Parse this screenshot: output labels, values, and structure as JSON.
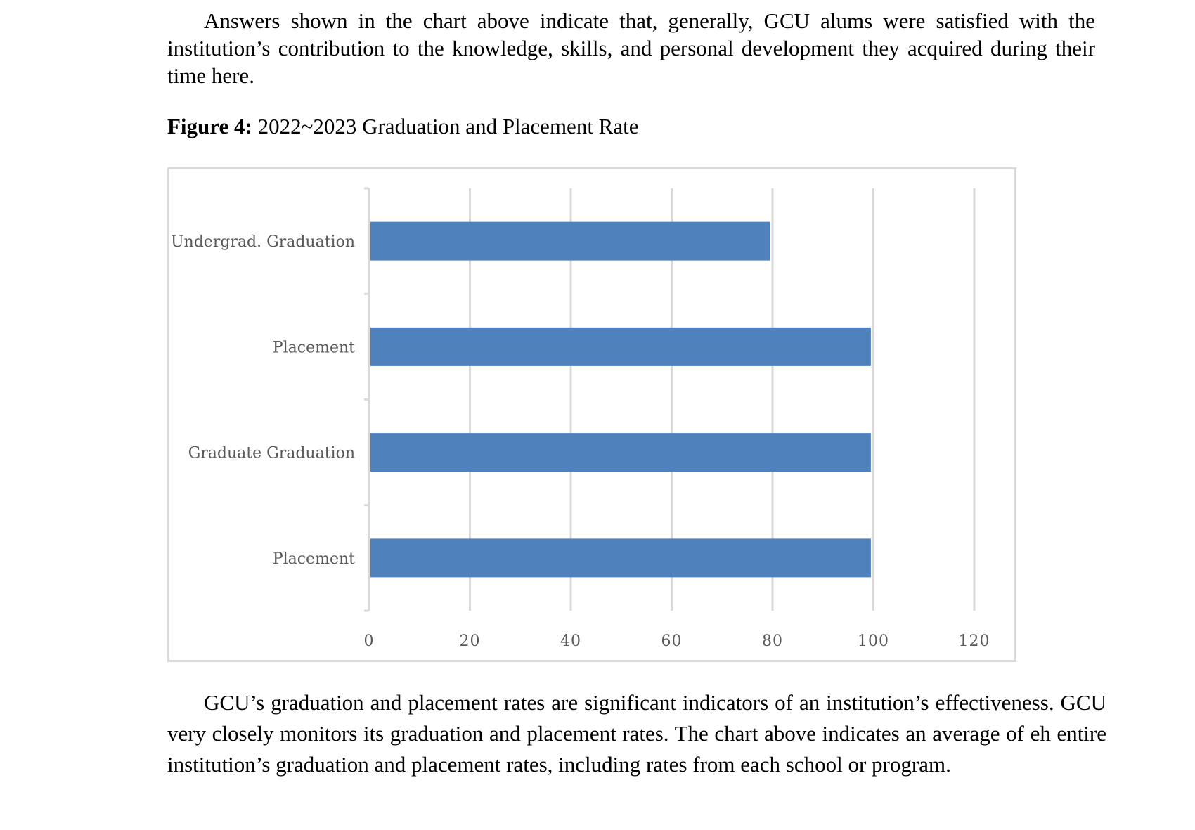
{
  "document": {
    "paragraph_top": "Answers shown in the chart above indicate that, generally, GCU alums were satisfied with the institution’s contribution to the knowledge, skills, and personal development they acquired during their time here.",
    "figure_label": "Figure 4:",
    "figure_title": "2022~2023 Graduation and Placement Rate",
    "paragraph_bottom": "GCU’s graduation and placement rates are significant indicators of an institution’s effectiveness. GCU very closely monitors its graduation and placement rates. The chart above indicates an average of eh entire institution’s graduation and placement rates, including rates from each school or program."
  },
  "chart_data": {
    "type": "bar",
    "orientation": "horizontal",
    "title": "",
    "xlabel": "",
    "ylabel": "",
    "categories": [
      "Undergrad. Graduation",
      "Placement",
      "Graduate Graduation",
      "Placement"
    ],
    "values": [
      79.5,
      99.5,
      99.5,
      99.5
    ],
    "xlim": [
      0,
      120
    ],
    "x_ticks": [
      0,
      20,
      40,
      60,
      80,
      100,
      120
    ],
    "grid": true,
    "legend": "none",
    "colors": {
      "bar": "#4f81bd",
      "grid": "#d9d9d9",
      "tick_label": "#595959",
      "frame": "#d9d9d9"
    }
  }
}
